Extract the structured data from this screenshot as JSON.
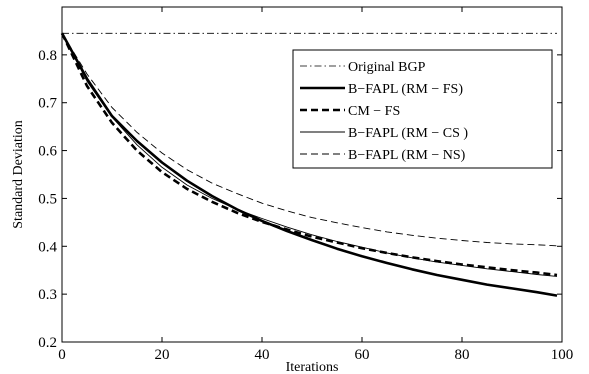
{
  "chart_data": {
    "type": "line",
    "xlabel": "Iterations",
    "ylabel": "Standard Deviation",
    "xlim": [
      0,
      100
    ],
    "ylim": [
      0.2,
      0.9
    ],
    "x_ticks": [
      "0",
      "20",
      "40",
      "60",
      "80",
      "100"
    ],
    "y_ticks": [
      "0.2",
      "0.3",
      "0.4",
      "0.5",
      "0.6",
      "0.7",
      "0.8"
    ],
    "grid": false,
    "legend_position": "upper-right",
    "x": [
      0,
      5,
      10,
      15,
      20,
      25,
      30,
      35,
      40,
      45,
      50,
      55,
      60,
      65,
      70,
      75,
      80,
      85,
      90,
      95,
      99
    ],
    "series": [
      {
        "name": "Original BGP",
        "style": "dash-dot",
        "color": "#000000",
        "values": [
          0.845,
          0.845,
          0.845,
          0.845,
          0.845,
          0.845,
          0.845,
          0.845,
          0.845,
          0.845,
          0.845,
          0.845,
          0.845,
          0.845,
          0.845,
          0.845,
          0.845,
          0.845,
          0.845,
          0.845,
          0.845
        ]
      },
      {
        "name": "B−FAPL (RM − FS)",
        "style": "thick-solid",
        "color": "#000000",
        "values": [
          0.845,
          0.75,
          0.672,
          0.62,
          0.575,
          0.537,
          0.505,
          0.477,
          0.453,
          0.432,
          0.413,
          0.395,
          0.379,
          0.365,
          0.352,
          0.34,
          0.33,
          0.32,
          0.312,
          0.304,
          0.297
        ]
      },
      {
        "name": "CM − FS",
        "style": "thick-dashed",
        "color": "#000000",
        "values": [
          0.845,
          0.735,
          0.658,
          0.6,
          0.555,
          0.52,
          0.493,
          0.47,
          0.451,
          0.435,
          0.42,
          0.408,
          0.396,
          0.386,
          0.377,
          0.369,
          0.362,
          0.356,
          0.35,
          0.345,
          0.34
        ]
      },
      {
        "name": "B−FAPL (RM − CS )",
        "style": "thin-solid",
        "color": "#000000",
        "values": [
          0.845,
          0.745,
          0.67,
          0.612,
          0.565,
          0.528,
          0.5,
          0.477,
          0.458,
          0.44,
          0.424,
          0.41,
          0.398,
          0.386,
          0.376,
          0.367,
          0.36,
          0.353,
          0.347,
          0.341,
          0.337
        ]
      },
      {
        "name": "B−FAPL (RM − NS)",
        "style": "thin-dashed",
        "color": "#000000",
        "values": [
          0.845,
          0.76,
          0.69,
          0.638,
          0.595,
          0.56,
          0.532,
          0.51,
          0.49,
          0.474,
          0.46,
          0.449,
          0.439,
          0.43,
          0.423,
          0.417,
          0.412,
          0.408,
          0.405,
          0.403,
          0.401
        ]
      }
    ]
  }
}
